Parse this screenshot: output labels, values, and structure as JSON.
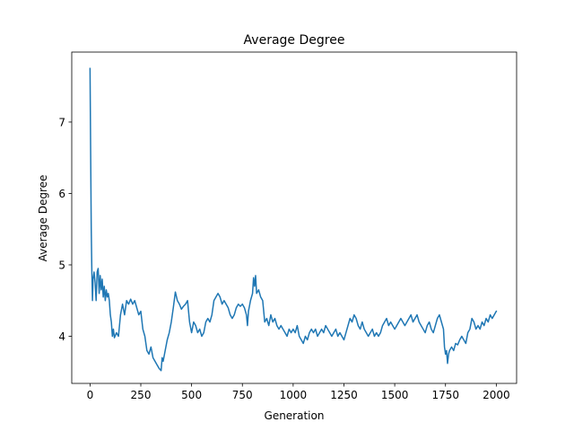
{
  "chart_data": {
    "type": "line",
    "title": "Average Degree",
    "xlabel": "Generation",
    "ylabel": "Average Degree",
    "xlim": [
      -90,
      2100
    ],
    "ylim": [
      3.34,
      7.98
    ],
    "grid": false,
    "x_ticks": [
      0,
      250,
      500,
      750,
      1000,
      1250,
      1500,
      1750,
      2000
    ],
    "x_tick_labels": [
      "0",
      "250",
      "500",
      "750",
      "1000",
      "1250",
      "1500",
      "1750",
      "2000"
    ],
    "y_ticks": [
      4,
      5,
      6,
      7
    ],
    "y_tick_labels": [
      "4",
      "5",
      "6",
      "7"
    ],
    "series": [
      {
        "color": "#1f77b4",
        "points": [
          [
            0,
            7.75
          ],
          [
            3,
            6.6
          ],
          [
            6,
            5.5
          ],
          [
            9,
            4.9
          ],
          [
            12,
            4.5
          ],
          [
            15,
            4.8
          ],
          [
            20,
            4.9
          ],
          [
            25,
            4.75
          ],
          [
            30,
            4.5
          ],
          [
            35,
            4.9
          ],
          [
            40,
            4.95
          ],
          [
            45,
            4.6
          ],
          [
            50,
            4.85
          ],
          [
            55,
            4.65
          ],
          [
            60,
            4.8
          ],
          [
            65,
            4.55
          ],
          [
            70,
            4.7
          ],
          [
            75,
            4.5
          ],
          [
            80,
            4.65
          ],
          [
            85,
            4.55
          ],
          [
            90,
            4.6
          ],
          [
            95,
            4.5
          ],
          [
            100,
            4.3
          ],
          [
            105,
            4.2
          ],
          [
            110,
            4.0
          ],
          [
            115,
            4.1
          ],
          [
            120,
            3.98
          ],
          [
            130,
            4.05
          ],
          [
            140,
            4.0
          ],
          [
            150,
            4.3
          ],
          [
            160,
            4.45
          ],
          [
            170,
            4.3
          ],
          [
            180,
            4.5
          ],
          [
            190,
            4.45
          ],
          [
            200,
            4.52
          ],
          [
            210,
            4.45
          ],
          [
            220,
            4.5
          ],
          [
            230,
            4.4
          ],
          [
            240,
            4.3
          ],
          [
            250,
            4.35
          ],
          [
            260,
            4.1
          ],
          [
            270,
            4.0
          ],
          [
            280,
            3.8
          ],
          [
            290,
            3.75
          ],
          [
            300,
            3.85
          ],
          [
            310,
            3.7
          ],
          [
            320,
            3.65
          ],
          [
            330,
            3.6
          ],
          [
            340,
            3.55
          ],
          [
            350,
            3.52
          ],
          [
            355,
            3.7
          ],
          [
            360,
            3.65
          ],
          [
            370,
            3.8
          ],
          [
            380,
            3.95
          ],
          [
            390,
            4.05
          ],
          [
            400,
            4.2
          ],
          [
            410,
            4.4
          ],
          [
            420,
            4.62
          ],
          [
            430,
            4.5
          ],
          [
            440,
            4.45
          ],
          [
            450,
            4.38
          ],
          [
            460,
            4.42
          ],
          [
            470,
            4.45
          ],
          [
            480,
            4.5
          ],
          [
            490,
            4.2
          ],
          [
            500,
            4.05
          ],
          [
            510,
            4.2
          ],
          [
            520,
            4.15
          ],
          [
            530,
            4.05
          ],
          [
            540,
            4.1
          ],
          [
            550,
            4.0
          ],
          [
            560,
            4.05
          ],
          [
            570,
            4.2
          ],
          [
            580,
            4.25
          ],
          [
            590,
            4.2
          ],
          [
            600,
            4.3
          ],
          [
            610,
            4.5
          ],
          [
            620,
            4.55
          ],
          [
            630,
            4.6
          ],
          [
            640,
            4.55
          ],
          [
            650,
            4.45
          ],
          [
            660,
            4.5
          ],
          [
            670,
            4.45
          ],
          [
            680,
            4.4
          ],
          [
            690,
            4.3
          ],
          [
            700,
            4.25
          ],
          [
            710,
            4.3
          ],
          [
            720,
            4.4
          ],
          [
            730,
            4.45
          ],
          [
            740,
            4.42
          ],
          [
            750,
            4.45
          ],
          [
            760,
            4.4
          ],
          [
            770,
            4.3
          ],
          [
            775,
            4.15
          ],
          [
            780,
            4.35
          ],
          [
            790,
            4.5
          ],
          [
            800,
            4.6
          ],
          [
            805,
            4.82
          ],
          [
            810,
            4.7
          ],
          [
            815,
            4.85
          ],
          [
            820,
            4.6
          ],
          [
            830,
            4.65
          ],
          [
            840,
            4.55
          ],
          [
            850,
            4.5
          ],
          [
            860,
            4.2
          ],
          [
            870,
            4.25
          ],
          [
            880,
            4.15
          ],
          [
            890,
            4.3
          ],
          [
            900,
            4.2
          ],
          [
            910,
            4.25
          ],
          [
            920,
            4.15
          ],
          [
            930,
            4.1
          ],
          [
            940,
            4.15
          ],
          [
            950,
            4.1
          ],
          [
            960,
            4.05
          ],
          [
            970,
            4.0
          ],
          [
            980,
            4.1
          ],
          [
            990,
            4.05
          ],
          [
            1000,
            4.1
          ],
          [
            1010,
            4.05
          ],
          [
            1020,
            4.15
          ],
          [
            1030,
            4.0
          ],
          [
            1040,
            3.95
          ],
          [
            1050,
            3.9
          ],
          [
            1060,
            4.0
          ],
          [
            1070,
            3.95
          ],
          [
            1080,
            4.05
          ],
          [
            1090,
            4.1
          ],
          [
            1100,
            4.05
          ],
          [
            1110,
            4.1
          ],
          [
            1120,
            4.0
          ],
          [
            1130,
            4.05
          ],
          [
            1140,
            4.1
          ],
          [
            1150,
            4.05
          ],
          [
            1160,
            4.15
          ],
          [
            1170,
            4.1
          ],
          [
            1180,
            4.05
          ],
          [
            1190,
            4.0
          ],
          [
            1200,
            4.05
          ],
          [
            1210,
            4.1
          ],
          [
            1220,
            4.0
          ],
          [
            1230,
            4.05
          ],
          [
            1240,
            4.0
          ],
          [
            1250,
            3.95
          ],
          [
            1260,
            4.05
          ],
          [
            1270,
            4.15
          ],
          [
            1280,
            4.25
          ],
          [
            1290,
            4.2
          ],
          [
            1300,
            4.3
          ],
          [
            1310,
            4.25
          ],
          [
            1320,
            4.15
          ],
          [
            1330,
            4.1
          ],
          [
            1340,
            4.2
          ],
          [
            1350,
            4.1
          ],
          [
            1360,
            4.05
          ],
          [
            1370,
            4.0
          ],
          [
            1380,
            4.05
          ],
          [
            1390,
            4.1
          ],
          [
            1400,
            4.0
          ],
          [
            1410,
            4.05
          ],
          [
            1420,
            4.0
          ],
          [
            1430,
            4.05
          ],
          [
            1440,
            4.15
          ],
          [
            1450,
            4.2
          ],
          [
            1460,
            4.25
          ],
          [
            1470,
            4.15
          ],
          [
            1480,
            4.2
          ],
          [
            1490,
            4.15
          ],
          [
            1500,
            4.1
          ],
          [
            1510,
            4.15
          ],
          [
            1520,
            4.2
          ],
          [
            1530,
            4.25
          ],
          [
            1540,
            4.2
          ],
          [
            1550,
            4.15
          ],
          [
            1560,
            4.2
          ],
          [
            1570,
            4.25
          ],
          [
            1580,
            4.3
          ],
          [
            1590,
            4.2
          ],
          [
            1600,
            4.25
          ],
          [
            1610,
            4.3
          ],
          [
            1620,
            4.2
          ],
          [
            1630,
            4.15
          ],
          [
            1640,
            4.1
          ],
          [
            1650,
            4.05
          ],
          [
            1660,
            4.15
          ],
          [
            1670,
            4.2
          ],
          [
            1680,
            4.1
          ],
          [
            1690,
            4.05
          ],
          [
            1700,
            4.15
          ],
          [
            1710,
            4.25
          ],
          [
            1720,
            4.3
          ],
          [
            1730,
            4.2
          ],
          [
            1740,
            4.1
          ],
          [
            1745,
            3.85
          ],
          [
            1750,
            3.75
          ],
          [
            1755,
            3.8
          ],
          [
            1760,
            3.62
          ],
          [
            1765,
            3.75
          ],
          [
            1770,
            3.8
          ],
          [
            1780,
            3.85
          ],
          [
            1790,
            3.8
          ],
          [
            1800,
            3.9
          ],
          [
            1810,
            3.88
          ],
          [
            1820,
            3.95
          ],
          [
            1830,
            4.0
          ],
          [
            1840,
            3.95
          ],
          [
            1850,
            3.9
          ],
          [
            1860,
            4.05
          ],
          [
            1870,
            4.1
          ],
          [
            1880,
            4.25
          ],
          [
            1890,
            4.2
          ],
          [
            1900,
            4.1
          ],
          [
            1910,
            4.15
          ],
          [
            1920,
            4.1
          ],
          [
            1930,
            4.2
          ],
          [
            1940,
            4.15
          ],
          [
            1950,
            4.25
          ],
          [
            1960,
            4.2
          ],
          [
            1970,
            4.3
          ],
          [
            1980,
            4.25
          ],
          [
            1990,
            4.3
          ],
          [
            2000,
            4.35
          ]
        ]
      }
    ]
  }
}
